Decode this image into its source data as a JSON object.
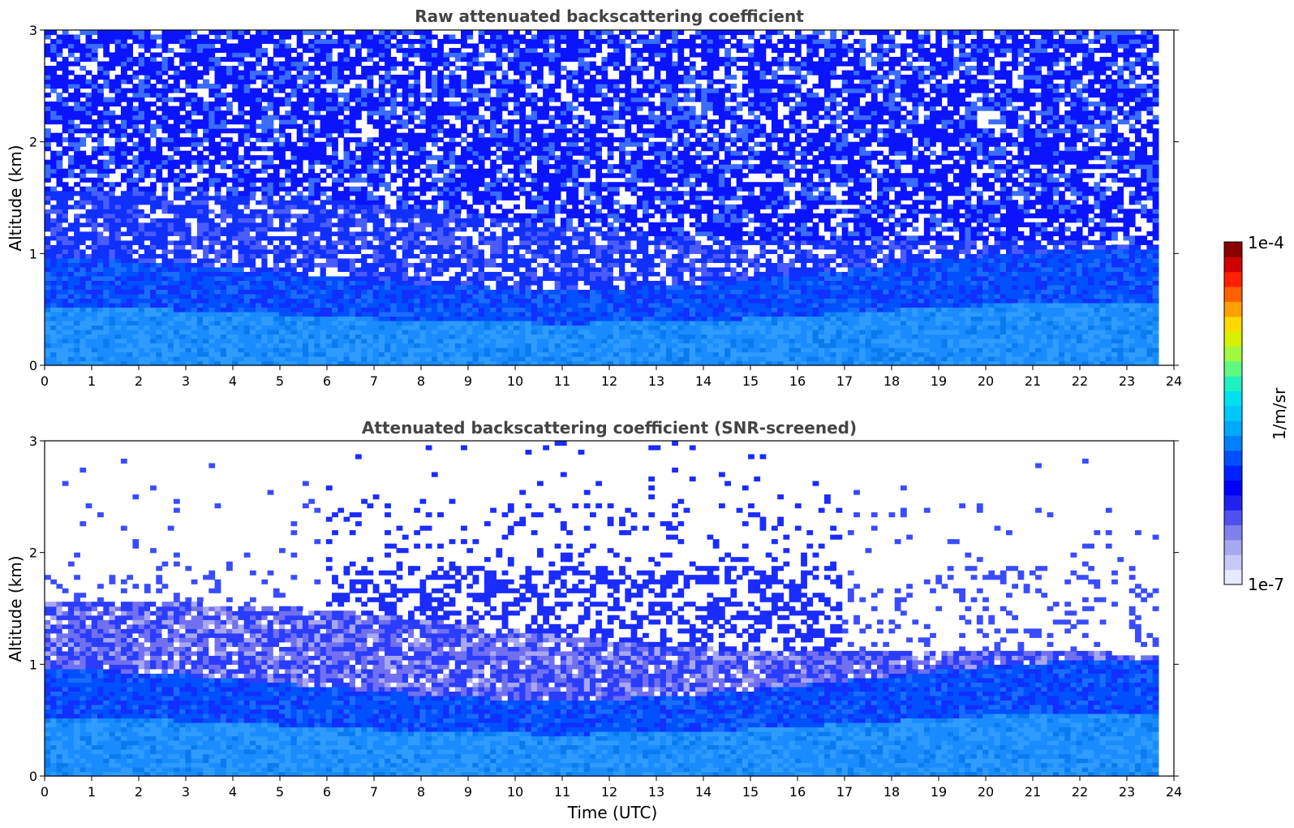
{
  "chart_data": [
    {
      "type": "heatmap",
      "title": "Raw attenuated backscattering coefficient",
      "xlabel": "",
      "ylabel": "Altitude (km)",
      "xlim": [
        0,
        24
      ],
      "ylim": [
        0,
        3
      ],
      "xticks": [
        "0",
        "1",
        "2",
        "3",
        "4",
        "5",
        "6",
        "7",
        "8",
        "9",
        "10",
        "11",
        "12",
        "13",
        "14",
        "15",
        "16",
        "17",
        "18",
        "19",
        "20",
        "21",
        "22",
        "23",
        "24"
      ],
      "yticks": [
        "0",
        "1",
        "2",
        "3"
      ],
      "data_time_range": [
        0,
        23.67
      ],
      "screened": false
    },
    {
      "type": "heatmap",
      "title": "Attenuated backscattering coefficient (SNR-screened)",
      "xlabel": "Time (UTC)",
      "ylabel": "Altitude (km)",
      "xlim": [
        0,
        24
      ],
      "ylim": [
        0,
        3
      ],
      "xticks": [
        "0",
        "1",
        "2",
        "3",
        "4",
        "5",
        "6",
        "7",
        "8",
        "9",
        "10",
        "11",
        "12",
        "13",
        "14",
        "15",
        "16",
        "17",
        "18",
        "19",
        "20",
        "21",
        "22",
        "23",
        "24"
      ],
      "yticks": [
        "0",
        "1",
        "2",
        "3"
      ],
      "data_time_range": [
        0,
        23.67
      ],
      "screened": true
    }
  ],
  "colorbar": {
    "label": "1/m/sr",
    "max_label": "1e-4",
    "min_label": "1e-7",
    "scale": "log",
    "range": [
      1e-07,
      0.0001
    ],
    "colors": [
      "#e8e8ff",
      "#c8c8f8",
      "#a8a8f0",
      "#8080ee",
      "#5050f0",
      "#2020f0",
      "#0000ff",
      "#0020ff",
      "#0050ff",
      "#0080ff",
      "#00a8ff",
      "#00c8ff",
      "#00e0f0",
      "#20f0c0",
      "#60f880",
      "#a0f840",
      "#d8f000",
      "#ffd800",
      "#ffa000",
      "#ff6000",
      "#ff2000",
      "#d00000",
      "#8b0000"
    ]
  }
}
